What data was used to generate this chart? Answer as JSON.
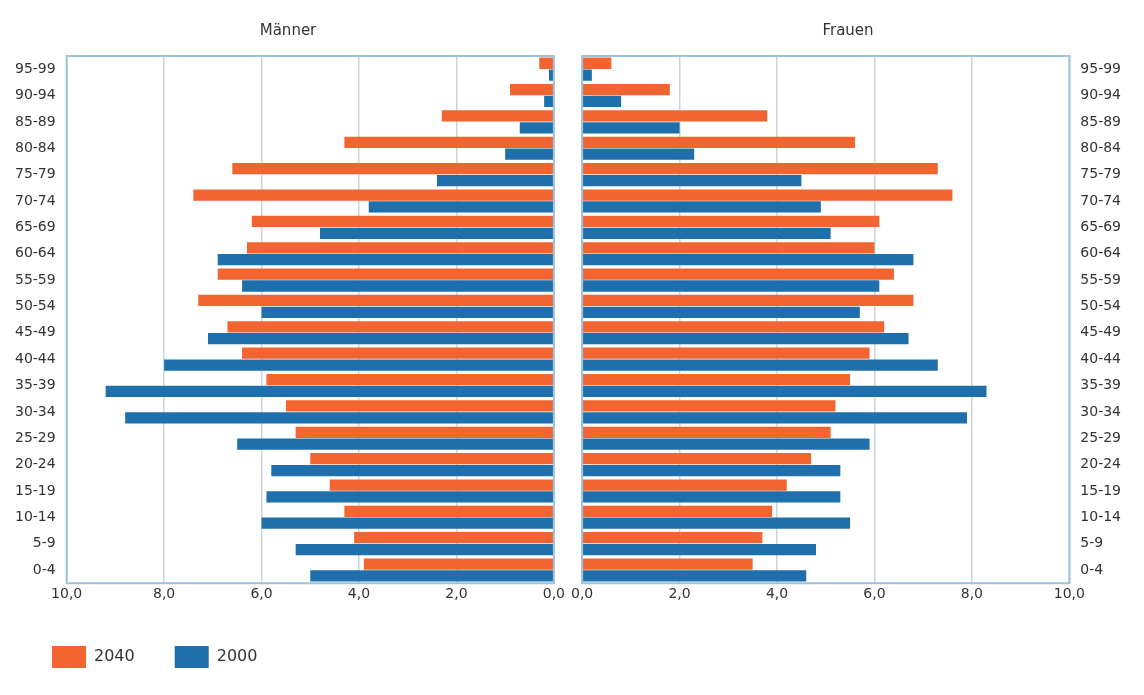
{
  "chart_data": [
    {
      "type": "bar",
      "orientation": "horizontal",
      "title": "Männer",
      "categories": [
        "95-99",
        "90-94",
        "85-89",
        "80-84",
        "75-79",
        "70-74",
        "65-69",
        "60-64",
        "55-59",
        "50-54",
        "45-49",
        "40-44",
        "35-39",
        "30-34",
        "25-29",
        "20-24",
        "15-19",
        "10-14",
        "5-9",
        "0-4"
      ],
      "series": [
        {
          "name": "2040",
          "color": "#f26531",
          "values": [
            0.3,
            0.9,
            2.3,
            4.3,
            6.6,
            7.4,
            6.2,
            6.3,
            6.9,
            7.3,
            6.7,
            6.4,
            5.9,
            5.5,
            5.3,
            5.0,
            4.6,
            4.3,
            4.1,
            3.9
          ]
        },
        {
          "name": "2000",
          "color": "#1f6fad",
          "values": [
            0.1,
            0.2,
            0.7,
            1.0,
            2.4,
            3.8,
            4.8,
            6.9,
            6.4,
            6.0,
            7.1,
            8.0,
            9.2,
            8.8,
            6.5,
            5.8,
            5.9,
            6.0,
            5.3,
            5.0
          ]
        }
      ],
      "xlim": [
        10,
        0
      ],
      "xticks": [
        {
          "value": 10,
          "label": "10,0"
        },
        {
          "value": 8,
          "label": "8,0"
        },
        {
          "value": 6,
          "label": "6,0"
        },
        {
          "value": 4,
          "label": "4,0"
        },
        {
          "value": 2,
          "label": "2,0"
        },
        {
          "value": 0,
          "label": "0,0"
        }
      ],
      "grid": "x",
      "legend": "bottom left"
    },
    {
      "type": "bar",
      "orientation": "horizontal",
      "title": "Frauen",
      "categories": [
        "95-99",
        "90-94",
        "85-89",
        "80-84",
        "75-79",
        "70-74",
        "65-69",
        "60-64",
        "55-59",
        "50-54",
        "45-49",
        "40-44",
        "35-39",
        "30-34",
        "25-29",
        "20-24",
        "15-19",
        "10-14",
        "5-9",
        "0-4"
      ],
      "series": [
        {
          "color": "#f26531",
          "values": [
            0.6,
            1.8,
            3.8,
            5.6,
            7.3,
            7.6,
            6.1,
            6.0,
            6.4,
            6.8,
            6.2,
            5.9,
            5.5,
            5.2,
            5.1,
            4.7,
            4.2,
            3.9,
            3.7,
            3.5
          ]
        },
        {
          "color": "#1f6fad",
          "values": [
            0.2,
            0.8,
            2.0,
            2.3,
            4.5,
            4.9,
            5.1,
            6.8,
            6.1,
            5.7,
            6.7,
            7.3,
            8.3,
            7.9,
            5.9,
            5.3,
            5.3,
            5.5,
            4.8,
            4.6
          ]
        }
      ],
      "xlim": [
        0,
        10
      ],
      "xticks": [
        {
          "value": 0,
          "label": "0,0"
        },
        {
          "value": 2,
          "label": "2,0"
        },
        {
          "value": 4,
          "label": "4,0"
        },
        {
          "value": 6,
          "label": "6,0"
        },
        {
          "value": 8,
          "label": "8,0"
        },
        {
          "value": 10,
          "label": "10,0"
        }
      ],
      "grid": "x"
    }
  ]
}
